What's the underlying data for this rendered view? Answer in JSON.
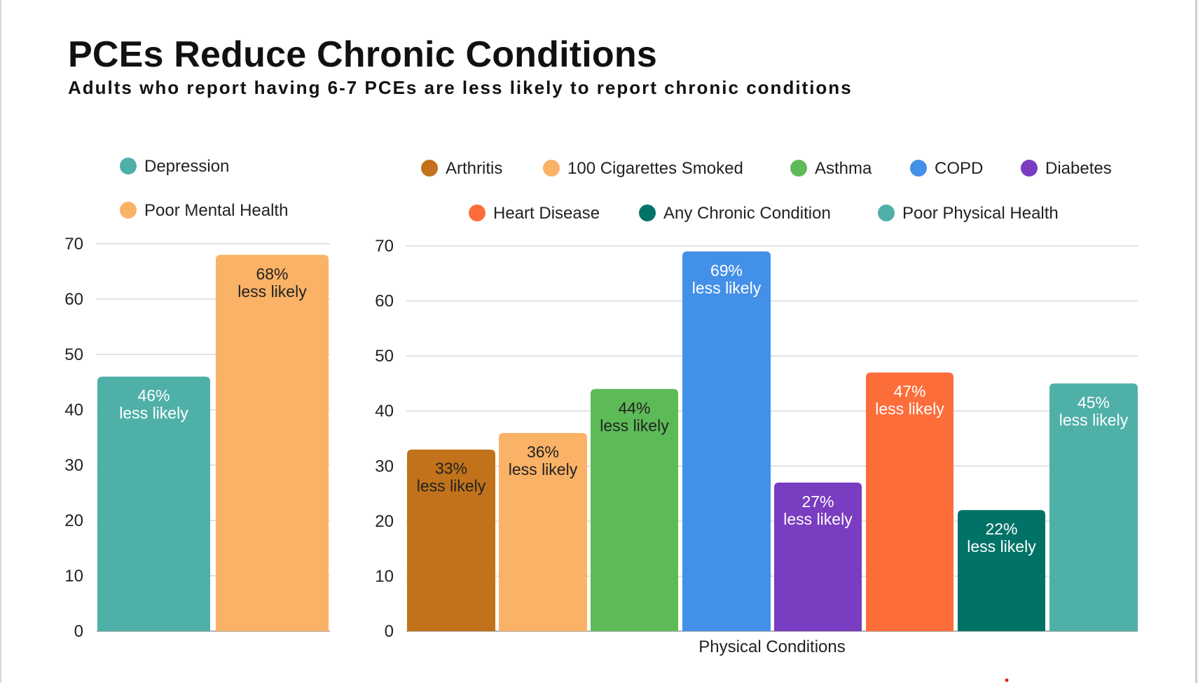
{
  "title": "PCEs Reduce Chronic Conditions",
  "subtitle": "Adults who report having 6-7 PCEs are less likely to report chronic conditions",
  "chart_data": [
    {
      "type": "bar",
      "title": "",
      "xlabel": "",
      "ylabel": "",
      "ylim": [
        0,
        70
      ],
      "yticks": [
        0,
        10,
        20,
        30,
        40,
        50,
        60,
        70
      ],
      "grid": true,
      "legend_position": "top",
      "series": [
        {
          "name": "Depression",
          "value": 46,
          "label_pct": "46%",
          "label_text": "less likely",
          "color": "#4fb0a8",
          "label_color": "#ffffff"
        },
        {
          "name": "Poor Mental Health",
          "value": 68,
          "label_pct": "68%",
          "label_text": "less likely",
          "color": "#fab266",
          "label_color": "#222222"
        }
      ]
    },
    {
      "type": "bar",
      "title": "",
      "xlabel": "Physical Conditions",
      "ylabel": "",
      "ylim": [
        0,
        70
      ],
      "yticks": [
        0,
        10,
        20,
        30,
        40,
        50,
        60,
        70
      ],
      "grid": true,
      "legend_position": "top",
      "series": [
        {
          "name": "Arthritis",
          "value": 33,
          "label_pct": "33%",
          "label_text": "less likely",
          "color": "#c1721a",
          "label_color": "#222222"
        },
        {
          "name": "100 Cigarettes Smoked",
          "value": 36,
          "label_pct": "36%",
          "label_text": "less likely",
          "color": "#fab266",
          "label_color": "#222222"
        },
        {
          "name": "Asthma",
          "value": 44,
          "label_pct": "44%",
          "label_text": "less likely",
          "color": "#5dbb57",
          "label_color": "#222222"
        },
        {
          "name": "COPD",
          "value": 69,
          "label_pct": "69%",
          "label_text": "less likely",
          "color": "#4390e8",
          "label_color": "#ffffff"
        },
        {
          "name": "Diabetes",
          "value": 27,
          "label_pct": "27%",
          "label_text": "less likely",
          "color": "#7a3cc0",
          "label_color": "#ffffff"
        },
        {
          "name": "Heart Disease",
          "value": 47,
          "label_pct": "47%",
          "label_text": "less likely",
          "color": "#fd6d3a",
          "label_color": "#ffffff"
        },
        {
          "name": "Any Chronic Condition",
          "value": 22,
          "label_pct": "22%",
          "label_text": "less likely",
          "color": "#017366",
          "label_color": "#ffffff"
        },
        {
          "name": "Poor Physical Health",
          "value": 45,
          "label_pct": "45%",
          "label_text": "less likely",
          "color": "#4fb0a8",
          "label_color": "#ffffff"
        }
      ]
    }
  ]
}
